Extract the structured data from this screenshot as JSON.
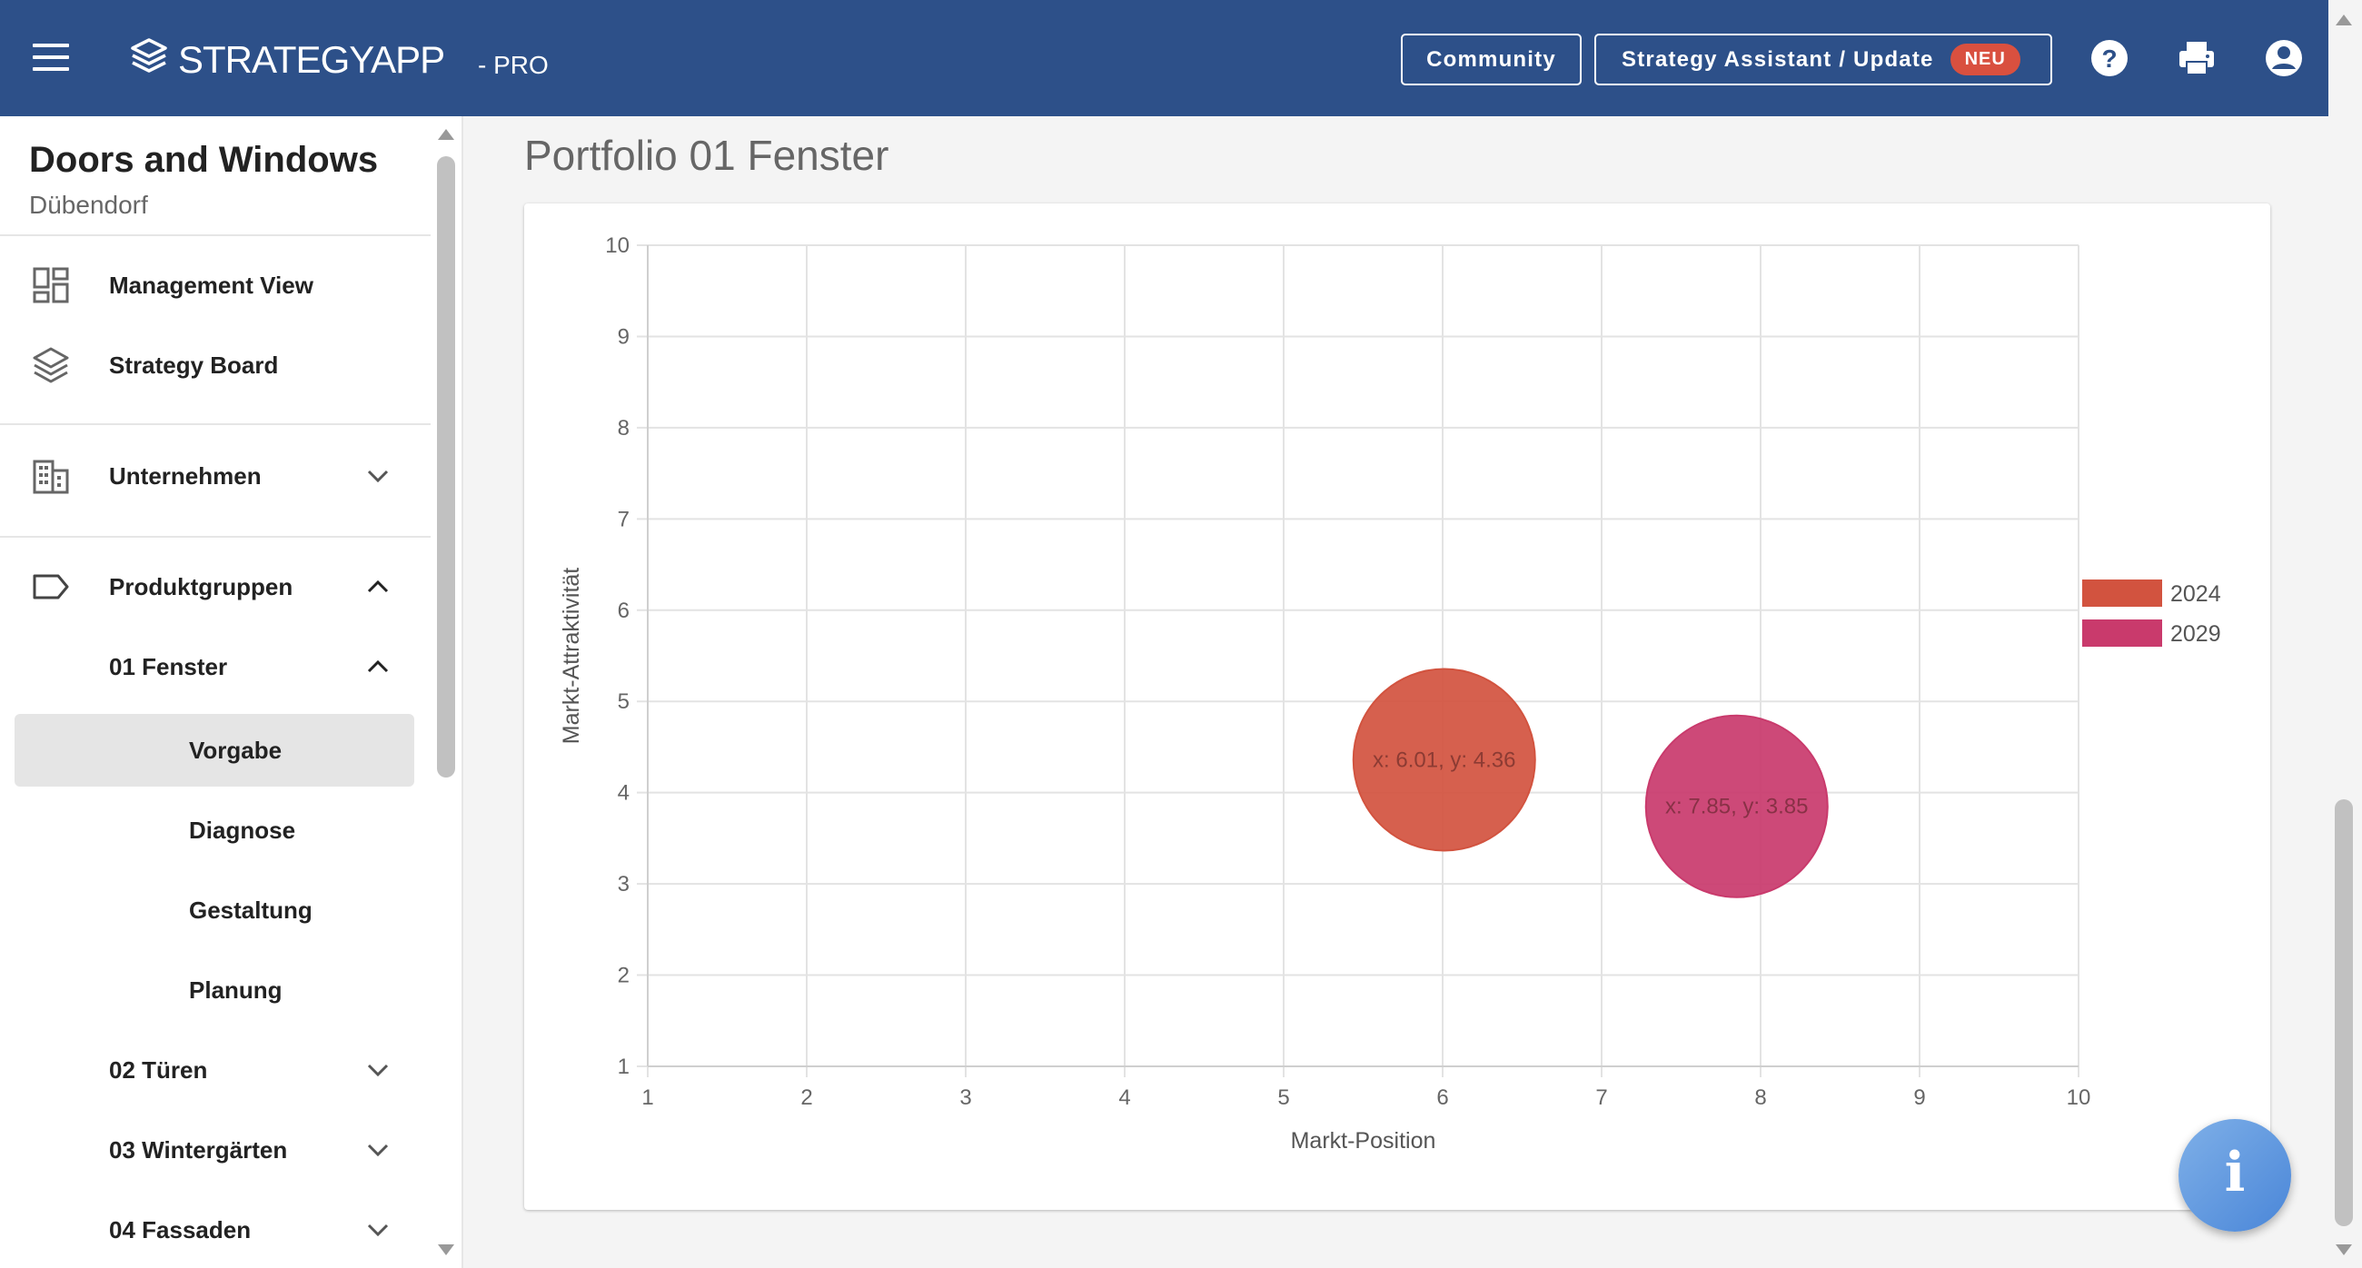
{
  "header": {
    "logo_text": "STRATEGYAPP",
    "logo_sub": "- PRO",
    "community_label": "Community",
    "assistant_label": "Strategy Assistant / Update",
    "assistant_badge": "NEU",
    "icons": [
      "menu-icon",
      "help-icon",
      "print-icon",
      "account-icon"
    ]
  },
  "sidebar": {
    "project_title": "Doors and Windows",
    "project_location": "Dübendorf",
    "items": [
      {
        "label": "Management View",
        "icon": "dashboard-icon"
      },
      {
        "label": "Strategy Board",
        "icon": "layers-icon"
      },
      {
        "label": "Unternehmen",
        "icon": "building-icon",
        "expanded": false
      },
      {
        "label": "Produktgruppen",
        "icon": "label-icon",
        "expanded": true
      },
      {
        "label": "01 Fenster",
        "expanded": true
      },
      {
        "label": "Vorgabe",
        "active": true
      },
      {
        "label": "Diagnose"
      },
      {
        "label": "Gestaltung"
      },
      {
        "label": "Planung"
      },
      {
        "label": "02 Türen",
        "expanded": false
      },
      {
        "label": "03 Wintergärten",
        "expanded": false
      },
      {
        "label": "04 Fassaden",
        "expanded": false
      }
    ]
  },
  "main": {
    "title": "Portfolio 01 Fenster",
    "fab_label": "i"
  },
  "chart_data": {
    "type": "scatter",
    "xlabel": "Markt-Position",
    "ylabel": "Markt-Attraktivität",
    "xlim": [
      1,
      10
    ],
    "ylim": [
      1,
      10
    ],
    "x_ticks": [
      "1",
      "2",
      "3",
      "4",
      "5",
      "6",
      "7",
      "8",
      "9",
      "10"
    ],
    "y_ticks": [
      "1",
      "2",
      "3",
      "4",
      "5",
      "6",
      "7",
      "8",
      "9",
      "10"
    ],
    "grid": true,
    "legend_position": "right",
    "series": [
      {
        "name": "2024",
        "x": 6.01,
        "y": 4.36,
        "label": "x: 6.01, y: 4.36",
        "color": "#d2533f"
      },
      {
        "name": "2029",
        "x": 7.85,
        "y": 3.85,
        "label": "x: 7.85, y: 3.85",
        "color": "#c93a6c"
      }
    ]
  }
}
